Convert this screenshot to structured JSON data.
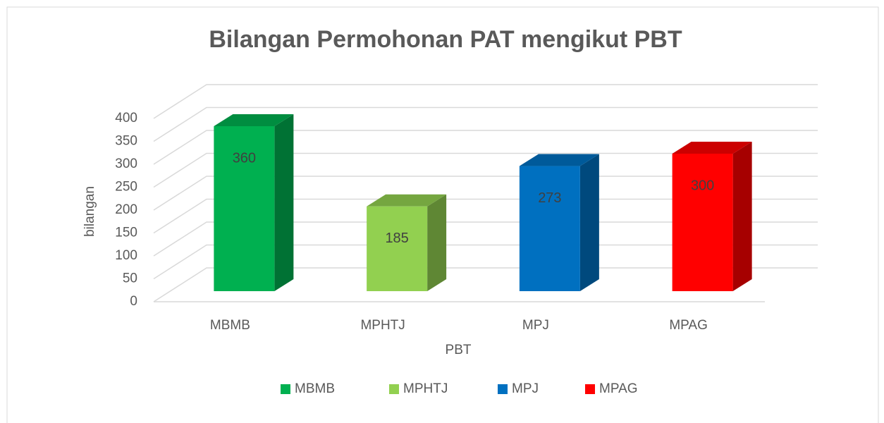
{
  "chart_data": {
    "type": "bar3d",
    "title": "Bilangan Permohonan PAT mengikut PBT",
    "categories": [
      "MBMB",
      "MPHTJ",
      "MPJ",
      "MPAG"
    ],
    "values": [
      360,
      185,
      273,
      300
    ],
    "colors": [
      "#00b050",
      "#92d050",
      "#0070c0",
      "#ff0000"
    ],
    "xlabel": "PBT",
    "ylabel": "bilangan",
    "ylim": [
      0,
      400
    ],
    "yticks": [
      0,
      50,
      100,
      150,
      200,
      250,
      300,
      350,
      400
    ],
    "grid": true,
    "legend": "bottom"
  }
}
